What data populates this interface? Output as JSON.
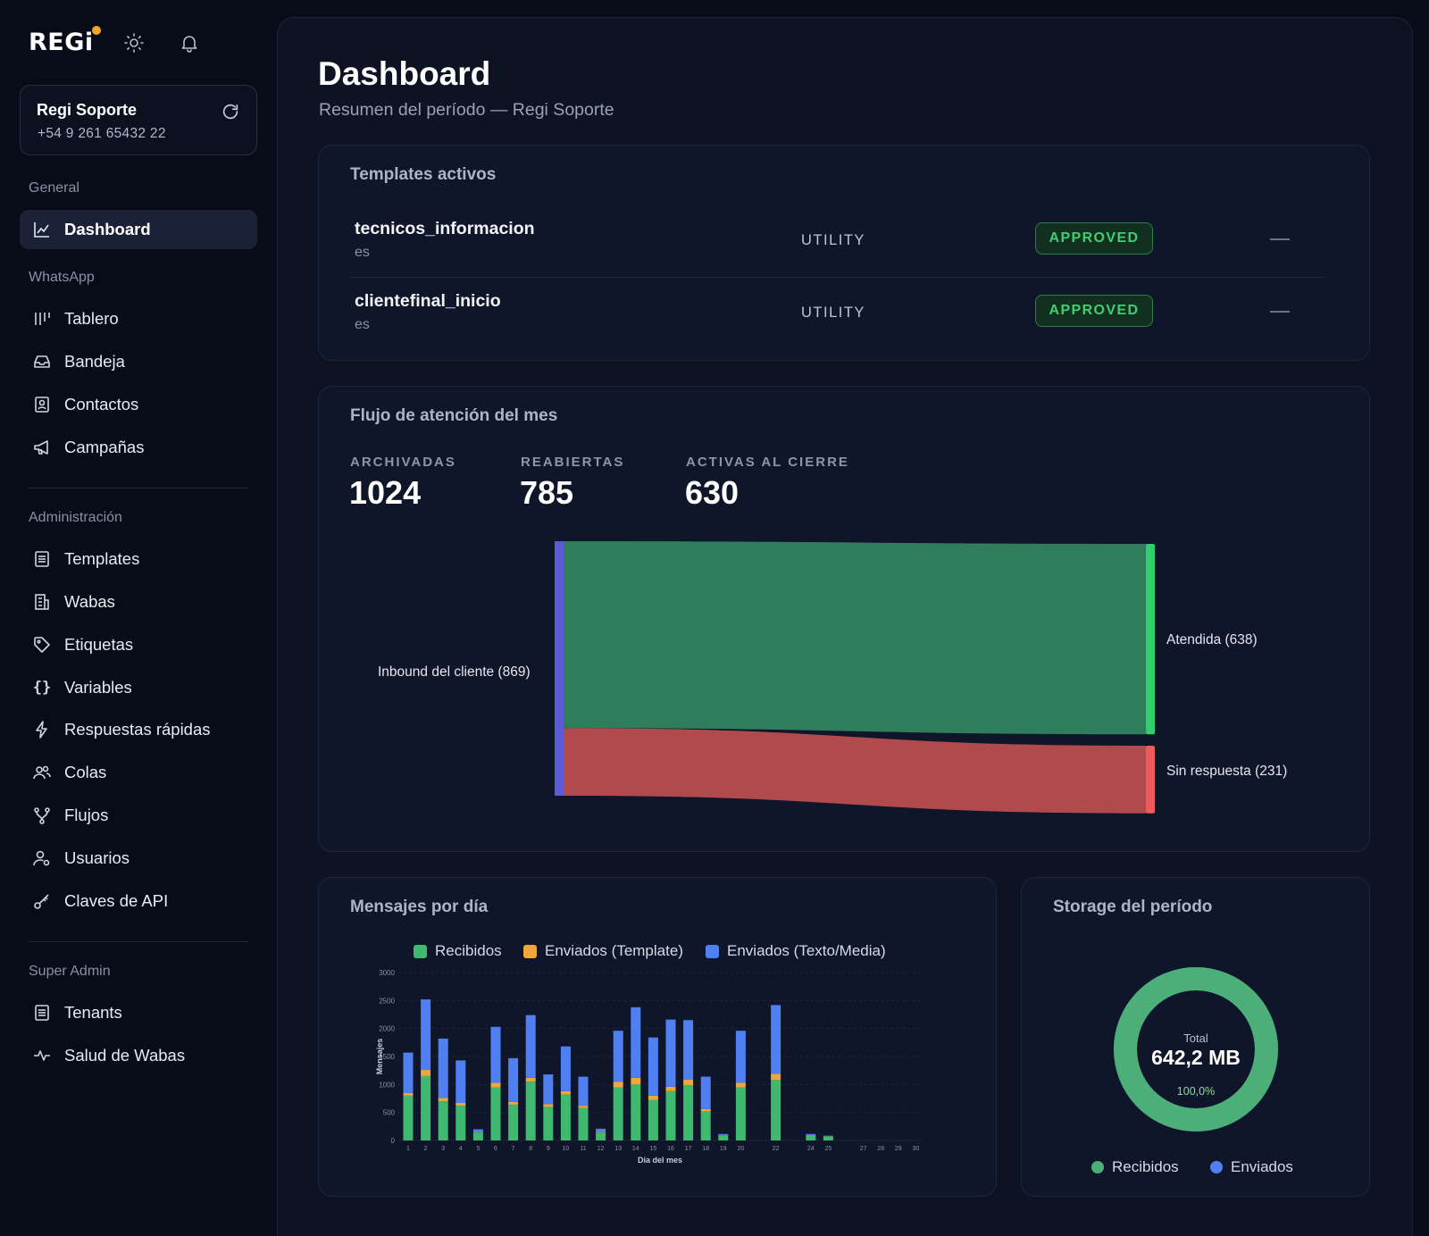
{
  "brand": {
    "logo": "REGi"
  },
  "account": {
    "name": "Regi Soporte",
    "phone": "+54 9 261 65432 22"
  },
  "sidebar": {
    "sections": {
      "general": "General",
      "whatsapp": "WhatsApp",
      "admin": "Administración",
      "super": "Super Admin"
    },
    "items": {
      "dashboard": "Dashboard",
      "tablero": "Tablero",
      "bandeja": "Bandeja",
      "contactos": "Contactos",
      "campanas": "Campañas",
      "templates": "Templates",
      "wabas": "Wabas",
      "etiquetas": "Etiquetas",
      "variables": "Variables",
      "respuestas": "Respuestas rápidas",
      "colas": "Colas",
      "flujos": "Flujos",
      "usuarios": "Usuarios",
      "claves": "Claves de API",
      "tenants": "Tenants",
      "salud": "Salud de Wabas"
    }
  },
  "header": {
    "title": "Dashboard",
    "subtitle": "Resumen del período — Regi Soporte"
  },
  "templates": {
    "title": "Templates activos",
    "rows": [
      {
        "name": "tecnicos_informacion",
        "lang": "es",
        "category": "UTILITY",
        "status": "APPROVED"
      },
      {
        "name": "clientefinal_inicio",
        "lang": "es",
        "category": "UTILITY",
        "status": "APPROVED"
      }
    ]
  },
  "flow": {
    "title": "Flujo de atención del mes",
    "kpis": [
      {
        "label": "ARCHIVADAS",
        "value": "1024"
      },
      {
        "label": "REABIERTAS",
        "value": "785"
      },
      {
        "label": "ACTIVAS AL CIERRE",
        "value": "630"
      }
    ],
    "sankey": {
      "source": "Inbound del cliente (869)",
      "target_a": "Atendida (638)",
      "target_b": "Sin respuesta (231)",
      "colors": {
        "source": "#5b5bd6",
        "a": "#2f7d5a",
        "a_node": "#2fcf6a",
        "b": "#b04a4c",
        "b_node": "#ef5a5a"
      },
      "values": {
        "source": 869,
        "a": 638,
        "b": 231
      }
    }
  },
  "messages": {
    "title": "Mensajes por día",
    "legend": [
      "Recibidos",
      "Enviados (Template)",
      "Enviados (Texto/Media)"
    ],
    "colors": [
      "#3fb970",
      "#f0a73a",
      "#4f7ff0"
    ]
  },
  "storage": {
    "title": "Storage del período",
    "total_label": "Total",
    "total_value": "642,2 MB",
    "percent": "100,0%",
    "legend": [
      "Recibidos",
      "Enviados"
    ],
    "colors": [
      "#4caf78",
      "#4f7ff0"
    ],
    "received_fraction": 1.0
  },
  "chart_data": {
    "type": "bar",
    "stacked": true,
    "xlabel": "Día del mes",
    "ylabel": "Mensajes",
    "ylim": [
      0,
      3000
    ],
    "yticks": [
      0,
      500,
      1000,
      1500,
      2000,
      2500,
      3000
    ],
    "x": [
      1,
      2,
      3,
      4,
      5,
      6,
      7,
      8,
      9,
      10,
      11,
      12,
      13,
      14,
      15,
      16,
      17,
      18,
      19,
      20,
      22,
      24,
      25,
      27,
      28,
      29,
      30
    ],
    "series": [
      {
        "name": "Recibidos",
        "values": [
          800,
          1150,
          700,
          620,
          140,
          950,
          640,
          1050,
          600,
          820,
          580,
          140,
          950,
          1000,
          720,
          880,
          990,
          520,
          80,
          950,
          1080,
          90,
          70,
          0,
          0,
          0,
          0
        ]
      },
      {
        "name": "Enviados (Template)",
        "values": [
          50,
          110,
          60,
          50,
          10,
          80,
          50,
          70,
          50,
          60,
          40,
          10,
          100,
          120,
          80,
          80,
          100,
          40,
          5,
          80,
          110,
          5,
          5,
          0,
          0,
          0,
          0
        ]
      },
      {
        "name": "Enviados (Texto/Media)",
        "values": [
          720,
          1260,
          1060,
          760,
          50,
          1000,
          780,
          1120,
          530,
          800,
          520,
          60,
          910,
          1260,
          1040,
          1200,
          1060,
          580,
          30,
          930,
          1230,
          20,
          10,
          0,
          0,
          0,
          0
        ]
      }
    ]
  }
}
